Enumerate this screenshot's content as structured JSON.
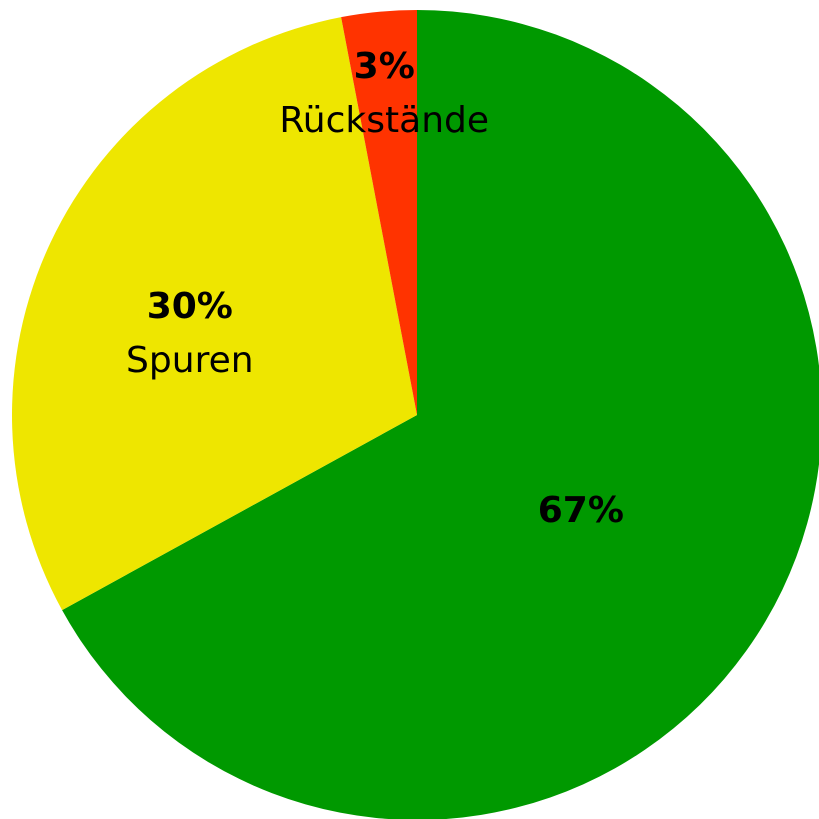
{
  "chart_data": {
    "type": "pie",
    "categories": [
      null,
      "Spuren",
      "Rückstände"
    ],
    "values": [
      67,
      30,
      3
    ],
    "value_labels": [
      "67%",
      "30%",
      "3%"
    ],
    "colors": [
      "#009900",
      "#eee600",
      "#ff3300"
    ],
    "start_angle": 0,
    "direction": "clockwise"
  }
}
